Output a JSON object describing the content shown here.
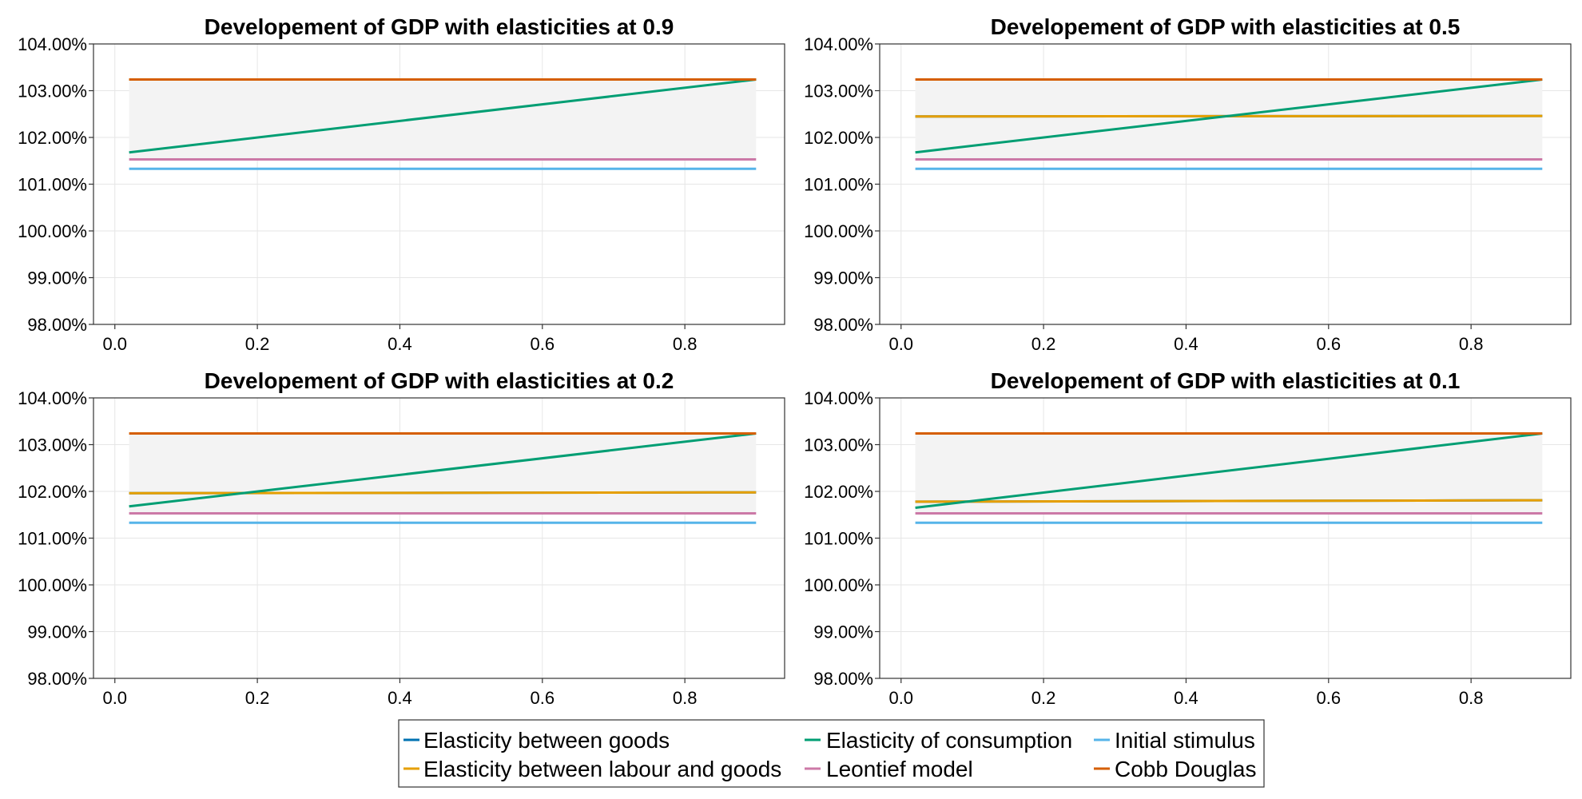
{
  "legend": [
    {
      "name": "Elasticity between goods",
      "color": "#0072b2"
    },
    {
      "name": "Elasticity between labour and goods",
      "color": "#e69f00"
    },
    {
      "name": "Elasticity of consumption",
      "color": "#009e73"
    },
    {
      "name": "Leontief model",
      "color": "#cc79a7"
    },
    {
      "name": "Initial stimulus",
      "color": "#56b4e9"
    },
    {
      "name": "Cobb Douglas",
      "color": "#d55e00"
    }
  ],
  "chart_data": [
    {
      "type": "line",
      "title": "Developement of GDP with elasticities at 0.9",
      "xlabel": "",
      "ylabel": "",
      "xlim": [
        -0.03,
        0.94
      ],
      "ylim": [
        98,
        104
      ],
      "xticks": [
        "0.0",
        "0.2",
        "0.4",
        "0.6",
        "0.8"
      ],
      "yticks": [
        "98.00%",
        "99.00%",
        "100.00%",
        "101.00%",
        "102.00%",
        "103.00%",
        "104.00%"
      ],
      "grid": true,
      "band": {
        "y_low": 101.53,
        "y_high": 103.24,
        "x": [
          0.02,
          0.9
        ],
        "color": "#f3f3f3"
      },
      "series": [
        {
          "name": "Elasticity between goods",
          "color": "#0072b2",
          "x": [
            0.02,
            0.9
          ],
          "y": [
            103.24,
            103.24
          ]
        },
        {
          "name": "Elasticity between labour and goods",
          "color": "#e69f00",
          "x": [
            0.02,
            0.9
          ],
          "y": [
            103.24,
            103.24
          ]
        },
        {
          "name": "Elasticity of consumption",
          "color": "#009e73",
          "x": [
            0.02,
            0.9
          ],
          "y": [
            101.68,
            103.24
          ]
        },
        {
          "name": "Leontief model",
          "color": "#cc79a7",
          "x": [
            0.02,
            0.9
          ],
          "y": [
            101.53,
            101.53
          ]
        },
        {
          "name": "Initial stimulus",
          "color": "#56b4e9",
          "x": [
            0.02,
            0.9
          ],
          "y": [
            101.33,
            101.33
          ]
        },
        {
          "name": "Cobb Douglas",
          "color": "#d55e00",
          "x": [
            0.02,
            0.9
          ],
          "y": [
            103.24,
            103.24
          ]
        }
      ]
    },
    {
      "type": "line",
      "title": "Developement of GDP with elasticities at 0.5",
      "xlabel": "",
      "ylabel": "",
      "xlim": [
        -0.03,
        0.94
      ],
      "ylim": [
        98,
        104
      ],
      "xticks": [
        "0.0",
        "0.2",
        "0.4",
        "0.6",
        "0.8"
      ],
      "yticks": [
        "98.00%",
        "99.00%",
        "100.00%",
        "101.00%",
        "102.00%",
        "103.00%",
        "104.00%"
      ],
      "grid": true,
      "band": {
        "y_low": 101.53,
        "y_high": 103.24,
        "x": [
          0.02,
          0.9
        ],
        "color": "#f3f3f3"
      },
      "series": [
        {
          "name": "Elasticity between goods",
          "color": "#0072b2",
          "x": [
            0.02,
            0.9
          ],
          "y": [
            102.45,
            102.46
          ]
        },
        {
          "name": "Elasticity between labour and goods",
          "color": "#e69f00",
          "x": [
            0.02,
            0.9
          ],
          "y": [
            102.45,
            102.46
          ]
        },
        {
          "name": "Elasticity of consumption",
          "color": "#009e73",
          "x": [
            0.02,
            0.9
          ],
          "y": [
            101.68,
            103.24
          ]
        },
        {
          "name": "Leontief model",
          "color": "#cc79a7",
          "x": [
            0.02,
            0.9
          ],
          "y": [
            101.53,
            101.53
          ]
        },
        {
          "name": "Initial stimulus",
          "color": "#56b4e9",
          "x": [
            0.02,
            0.9
          ],
          "y": [
            101.33,
            101.33
          ]
        },
        {
          "name": "Cobb Douglas",
          "color": "#d55e00",
          "x": [
            0.02,
            0.9
          ],
          "y": [
            103.24,
            103.24
          ]
        }
      ]
    },
    {
      "type": "line",
      "title": "Developement of GDP with elasticities at 0.2",
      "xlabel": "",
      "ylabel": "",
      "xlim": [
        -0.03,
        0.94
      ],
      "ylim": [
        98,
        104
      ],
      "xticks": [
        "0.0",
        "0.2",
        "0.4",
        "0.6",
        "0.8"
      ],
      "yticks": [
        "98.00%",
        "99.00%",
        "100.00%",
        "101.00%",
        "102.00%",
        "103.00%",
        "104.00%"
      ],
      "grid": true,
      "band": {
        "y_low": 101.53,
        "y_high": 103.24,
        "x": [
          0.02,
          0.9
        ],
        "color": "#f3f3f3"
      },
      "series": [
        {
          "name": "Elasticity between goods",
          "color": "#0072b2",
          "x": [
            0.02,
            0.9
          ],
          "y": [
            101.96,
            101.98
          ]
        },
        {
          "name": "Elasticity between labour and goods",
          "color": "#e69f00",
          "x": [
            0.02,
            0.9
          ],
          "y": [
            101.96,
            101.98
          ]
        },
        {
          "name": "Elasticity of consumption",
          "color": "#009e73",
          "x": [
            0.02,
            0.9
          ],
          "y": [
            101.68,
            103.24
          ]
        },
        {
          "name": "Leontief model",
          "color": "#cc79a7",
          "x": [
            0.02,
            0.9
          ],
          "y": [
            101.53,
            101.53
          ]
        },
        {
          "name": "Initial stimulus",
          "color": "#56b4e9",
          "x": [
            0.02,
            0.9
          ],
          "y": [
            101.33,
            101.33
          ]
        },
        {
          "name": "Cobb Douglas",
          "color": "#d55e00",
          "x": [
            0.02,
            0.9
          ],
          "y": [
            103.24,
            103.24
          ]
        }
      ]
    },
    {
      "type": "line",
      "title": "Developement of GDP with elasticities at 0.1",
      "xlabel": "",
      "ylabel": "",
      "xlim": [
        -0.03,
        0.94
      ],
      "ylim": [
        98,
        104
      ],
      "xticks": [
        "0.0",
        "0.2",
        "0.4",
        "0.6",
        "0.8"
      ],
      "yticks": [
        "98.00%",
        "99.00%",
        "100.00%",
        "101.00%",
        "102.00%",
        "103.00%",
        "104.00%"
      ],
      "grid": true,
      "band": {
        "y_low": 101.53,
        "y_high": 103.24,
        "x": [
          0.02,
          0.9
        ],
        "color": "#f3f3f3"
      },
      "series": [
        {
          "name": "Elasticity between goods",
          "color": "#0072b2",
          "x": [
            0.02,
            0.9
          ],
          "y": [
            101.78,
            101.81
          ]
        },
        {
          "name": "Elasticity between labour and goods",
          "color": "#e69f00",
          "x": [
            0.02,
            0.9
          ],
          "y": [
            101.78,
            101.81
          ]
        },
        {
          "name": "Elasticity of consumption",
          "color": "#009e73",
          "x": [
            0.02,
            0.9
          ],
          "y": [
            101.65,
            103.24
          ]
        },
        {
          "name": "Leontief model",
          "color": "#cc79a7",
          "x": [
            0.02,
            0.9
          ],
          "y": [
            101.53,
            101.53
          ]
        },
        {
          "name": "Initial stimulus",
          "color": "#56b4e9",
          "x": [
            0.02,
            0.9
          ],
          "y": [
            101.33,
            101.33
          ]
        },
        {
          "name": "Cobb Douglas",
          "color": "#d55e00",
          "x": [
            0.02,
            0.9
          ],
          "y": [
            103.24,
            103.24
          ]
        }
      ]
    }
  ]
}
